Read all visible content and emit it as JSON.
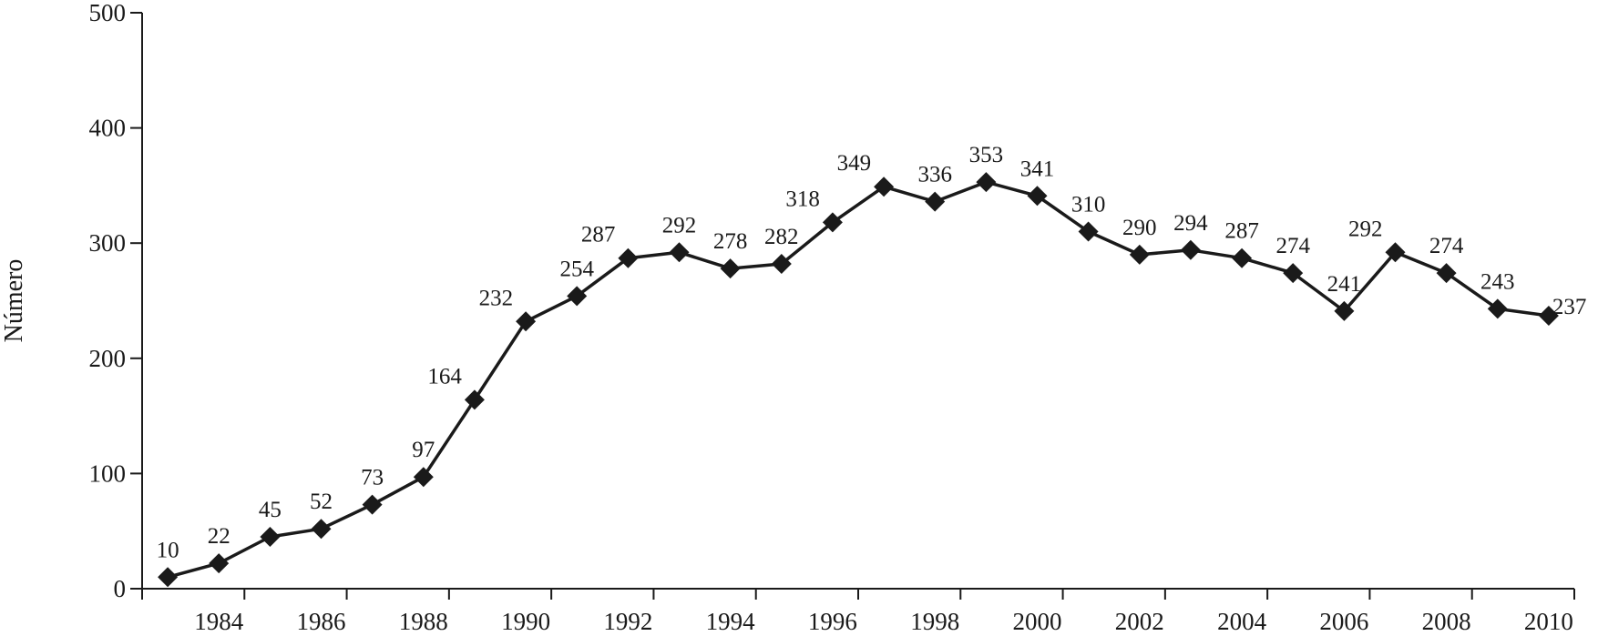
{
  "chart_data": {
    "type": "line",
    "title": "",
    "xlabel": "",
    "ylabel": "Número",
    "ylim": [
      0,
      500
    ],
    "yticks": [
      0,
      100,
      200,
      300,
      400,
      500
    ],
    "xtick_labels": [
      "1984",
      "1986",
      "1988",
      "1990",
      "1992",
      "1994",
      "1996",
      "1998",
      "2000",
      "2002",
      "2004",
      "2006",
      "2008",
      "2010"
    ],
    "grid": false,
    "legend": "none",
    "line_color": "#1a1a1a",
    "marker": "diamond",
    "series": [
      {
        "x": [
          1983,
          1984,
          1985,
          1986,
          1987,
          1988,
          1989,
          1990,
          1991,
          1992,
          1993,
          1994,
          1995,
          1996,
          1997,
          1998,
          1999,
          2000,
          2001,
          2002,
          2003,
          2004,
          2005,
          2006,
          2007,
          2008,
          2009,
          2010
        ],
        "values": [
          10,
          22,
          45,
          52,
          73,
          97,
          164,
          232,
          254,
          287,
          292,
          278,
          282,
          318,
          349,
          336,
          353,
          341,
          310,
          290,
          294,
          287,
          274,
          241,
          292,
          274,
          243,
          237
        ]
      }
    ]
  }
}
